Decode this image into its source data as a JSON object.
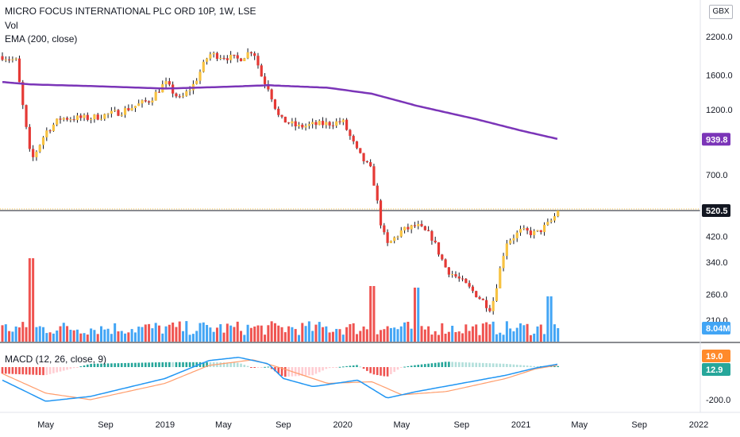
{
  "legend": {
    "title": "MICRO FOCUS INTERNATIONAL PLC ORD 10P, 1W, LSE",
    "volume": "Vol",
    "ema": "EMA (200, close)",
    "macd": "MACD (12, 26, close, 9)"
  },
  "currency": "GBX",
  "price_badges": {
    "ema": {
      "text": "939.8",
      "color": "#7b35b8"
    },
    "last": {
      "text": "520.5",
      "color": "#131722"
    },
    "volume": {
      "text": "8.04M",
      "color": "#42a5f5"
    }
  },
  "macd_badges": {
    "macd": {
      "text": "19.0",
      "color": "#ff8a2b"
    },
    "signal": {
      "text": "12.9",
      "color": "#26a69a"
    }
  },
  "colors": {
    "up": "#f7c241",
    "down": "#e53935",
    "ema": "#7b35b8",
    "vol_up": "#42a5f5",
    "vol_down": "#ef5350",
    "macd_line": "#2196f3",
    "signal_line": "#ff9d6c",
    "hist_pos_strong": "#26a69a",
    "hist_pos_weak": "#b2dfdb",
    "hist_neg_strong": "#ef5350",
    "hist_neg_weak": "#ffcdd2"
  },
  "chart_data": {
    "type": "candlestick",
    "price_axis": {
      "scale": "log",
      "ticks": [
        2200.0,
        1600.0,
        1200.0,
        700.0,
        420.0,
        340.0,
        260.0,
        210.0
      ],
      "tick_labels": [
        "2200.0",
        "1600.0",
        "1200.0",
        "700.0",
        "420.0",
        "340.0",
        "260.0",
        "210.0"
      ]
    },
    "macd_axis": {
      "ticks": [
        -200.0
      ],
      "tick_labels": [
        "-200.0"
      ]
    },
    "time_axis": {
      "labels": [
        "May",
        "Sep",
        "2019",
        "May",
        "Sep",
        "2020",
        "May",
        "Sep",
        "2021",
        "May",
        "Sep",
        "2022"
      ]
    },
    "price_keypoints": [
      [
        "2018-02",
        1870
      ],
      [
        "2018-03",
        1800
      ],
      [
        "2018-04",
        780
      ],
      [
        "2018-05",
        1000
      ],
      [
        "2018-06",
        1120
      ],
      [
        "2018-08",
        1120
      ],
      [
        "2018-10",
        1180
      ],
      [
        "2018-11",
        1240
      ],
      [
        "2018-12",
        1300
      ],
      [
        "2019-01",
        1500
      ],
      [
        "2019-02",
        1300
      ],
      [
        "2019-03",
        1480
      ],
      [
        "2019-04",
        1900
      ],
      [
        "2019-05",
        1870
      ],
      [
        "2019-06",
        1820
      ],
      [
        "2019-07",
        1980
      ],
      [
        "2019-07-20",
        1550
      ],
      [
        "2019-08",
        1450
      ],
      [
        "2019-08-25",
        1100
      ],
      [
        "2019-09",
        1100
      ],
      [
        "2019-10",
        1040
      ],
      [
        "2019-11",
        1060
      ],
      [
        "2019-12",
        1070
      ],
      [
        "2020-01",
        1090
      ],
      [
        "2020-02",
        840
      ],
      [
        "2020-03",
        720
      ],
      [
        "2020-03-20",
        460
      ],
      [
        "2020-04",
        390
      ],
      [
        "2020-05",
        440
      ],
      [
        "2020-06",
        460
      ],
      [
        "2020-07",
        420
      ],
      [
        "2020-08",
        320
      ],
      [
        "2020-09",
        290
      ],
      [
        "2020-10",
        260
      ],
      [
        "2020-11",
        230
      ],
      [
        "2020-12",
        400
      ],
      [
        "2021-01",
        440
      ],
      [
        "2021-02",
        430
      ],
      [
        "2021-03",
        470
      ],
      [
        "2021-03-20",
        520.5
      ]
    ],
    "last_price": 520.5,
    "ema_200": {
      "name": "EMA (200, close)",
      "points": [
        [
          "2018-02",
          1510
        ],
        [
          "2018-04",
          1480
        ],
        [
          "2018-08",
          1460
        ],
        [
          "2019-01",
          1430
        ],
        [
          "2019-05",
          1450
        ],
        [
          "2019-08",
          1470
        ],
        [
          "2019-12",
          1440
        ],
        [
          "2020-03",
          1370
        ],
        [
          "2020-06",
          1240
        ],
        [
          "2020-10",
          1110
        ],
        [
          "2021-01",
          1010
        ],
        [
          "2021-03-20",
          939.8
        ]
      ]
    },
    "volume": {
      "unit": "M",
      "last": 8.04,
      "spikes": [
        [
          "2018-04",
          70
        ],
        [
          "2020-03",
          35
        ],
        [
          "2020-06",
          33
        ],
        [
          "2021-03",
          22
        ]
      ]
    },
    "macd": {
      "macd_line": [
        [
          "2018-02",
          -80
        ],
        [
          "2018-05",
          -210
        ],
        [
          "2018-08",
          -180
        ],
        [
          "2019-01",
          -70
        ],
        [
          "2019-04",
          40
        ],
        [
          "2019-06",
          60
        ],
        [
          "2019-08",
          20
        ],
        [
          "2019-09",
          -70
        ],
        [
          "2019-11",
          -120
        ],
        [
          "2020-02",
          -80
        ],
        [
          "2020-04",
          -190
        ],
        [
          "2020-06",
          -150
        ],
        [
          "2020-09",
          -100
        ],
        [
          "2020-12",
          -50
        ],
        [
          "2021-02",
          -5
        ],
        [
          "2021-03-20",
          19.0
        ]
      ],
      "signal_line": [
        [
          "2018-02",
          -40
        ],
        [
          "2018-05",
          -160
        ],
        [
          "2018-08",
          -200
        ],
        [
          "2019-01",
          -100
        ],
        [
          "2019-04",
          10
        ],
        [
          "2019-07",
          45
        ],
        [
          "2019-09",
          -10
        ],
        [
          "2019-12",
          -100
        ],
        [
          "2020-03",
          -90
        ],
        [
          "2020-05",
          -170
        ],
        [
          "2020-08",
          -150
        ],
        [
          "2020-12",
          -70
        ],
        [
          "2021-02",
          -10
        ],
        [
          "2021-03-20",
          12.9
        ]
      ]
    }
  }
}
